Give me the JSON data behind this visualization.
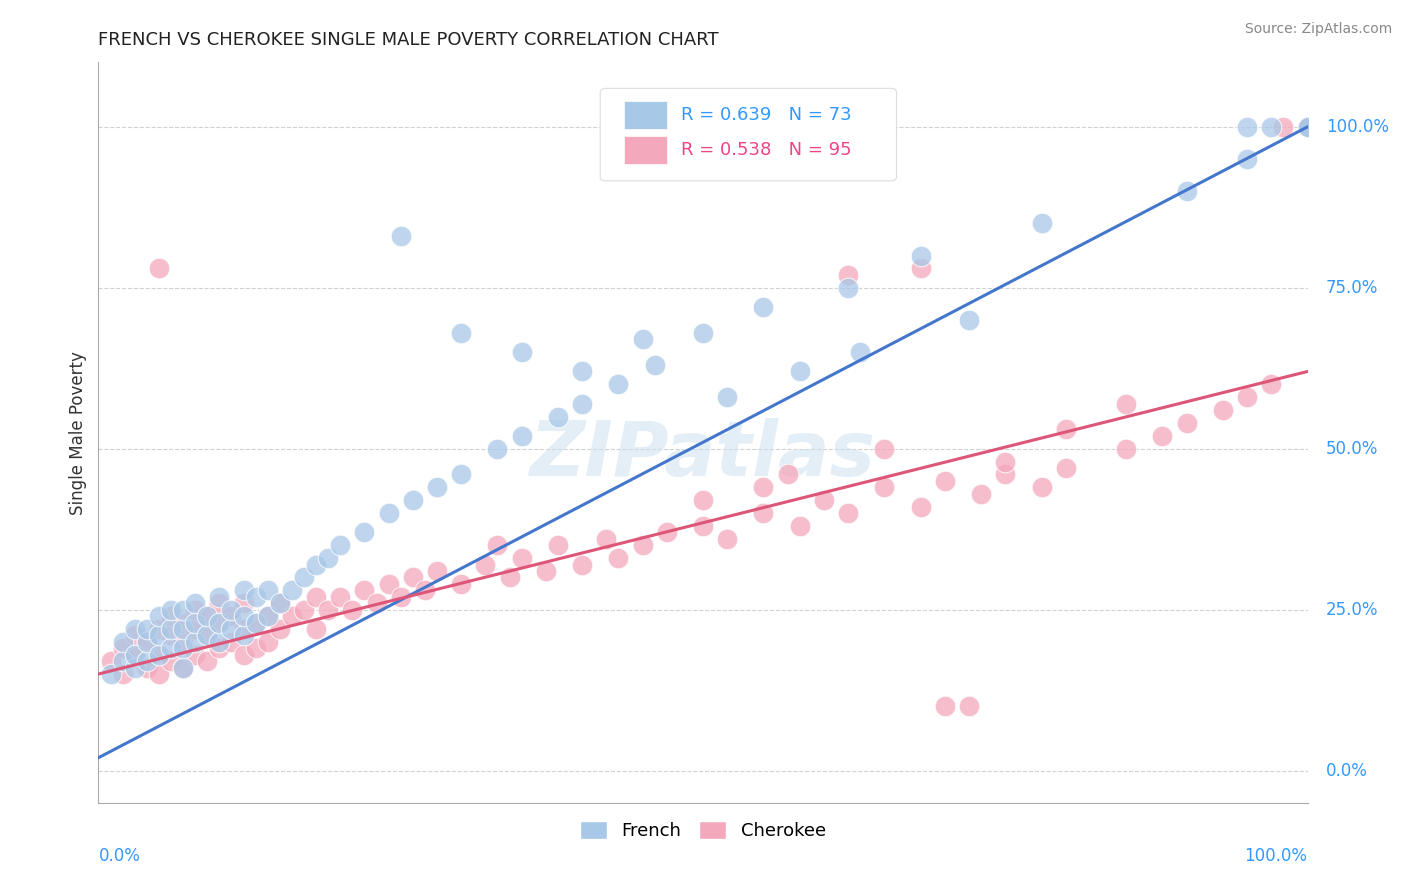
{
  "title": "FRENCH VS CHEROKEE SINGLE MALE POVERTY CORRELATION CHART",
  "source_text": "Source: ZipAtlas.com",
  "ylabel": "Single Male Poverty",
  "xlim": [
    0.0,
    1.0
  ],
  "ylim": [
    -0.05,
    1.1
  ],
  "french_R": 0.639,
  "french_N": 73,
  "cherokee_R": 0.538,
  "cherokee_N": 95,
  "blue_color": "#a8c8e8",
  "pink_color": "#f4a8bc",
  "blue_line_color": "#4477cc",
  "pink_line_color": "#dd5577",
  "legend_blue_text": "#3399ff",
  "legend_pink_text": "#ee4488",
  "ytick_values": [
    0.0,
    0.25,
    0.5,
    0.75,
    1.0
  ],
  "ytick_labels": [
    "0.0%",
    "25.0%",
    "50.0%",
    "75.0%",
    "100.0%"
  ],
  "french_line_x0": 0.0,
  "french_line_y0": 0.02,
  "french_line_x1": 1.0,
  "french_line_y1": 1.0,
  "cherokee_line_x0": 0.0,
  "cherokee_line_y0": 0.15,
  "cherokee_line_x1": 1.0,
  "cherokee_line_y1": 0.62,
  "french_x": [
    0.01,
    0.02,
    0.02,
    0.03,
    0.03,
    0.03,
    0.04,
    0.04,
    0.04,
    0.05,
    0.05,
    0.05,
    0.06,
    0.06,
    0.06,
    0.07,
    0.07,
    0.07,
    0.07,
    0.08,
    0.08,
    0.08,
    0.09,
    0.09,
    0.1,
    0.1,
    0.1,
    0.11,
    0.11,
    0.12,
    0.12,
    0.12,
    0.13,
    0.13,
    0.14,
    0.14,
    0.15,
    0.16,
    0.17,
    0.18,
    0.19,
    0.2,
    0.22,
    0.24,
    0.26,
    0.28,
    0.3,
    0.33,
    0.35,
    0.38,
    0.4,
    0.43,
    0.46,
    0.5,
    0.35,
    0.4,
    0.45,
    0.55,
    0.62,
    0.68,
    0.78,
    0.9,
    0.95,
    0.97,
    1.0,
    0.95,
    1.0,
    0.25,
    0.3,
    0.52,
    0.58,
    0.63,
    0.72
  ],
  "french_y": [
    0.15,
    0.17,
    0.2,
    0.16,
    0.18,
    0.22,
    0.17,
    0.2,
    0.22,
    0.18,
    0.21,
    0.24,
    0.19,
    0.22,
    0.25,
    0.16,
    0.19,
    0.22,
    0.25,
    0.2,
    0.23,
    0.26,
    0.21,
    0.24,
    0.2,
    0.23,
    0.27,
    0.22,
    0.25,
    0.21,
    0.24,
    0.28,
    0.23,
    0.27,
    0.24,
    0.28,
    0.26,
    0.28,
    0.3,
    0.32,
    0.33,
    0.35,
    0.37,
    0.4,
    0.42,
    0.44,
    0.46,
    0.5,
    0.52,
    0.55,
    0.57,
    0.6,
    0.63,
    0.68,
    0.65,
    0.62,
    0.67,
    0.72,
    0.75,
    0.8,
    0.85,
    0.9,
    0.95,
    1.0,
    1.0,
    1.0,
    1.0,
    0.83,
    0.68,
    0.58,
    0.62,
    0.65,
    0.7
  ],
  "cherokee_x": [
    0.01,
    0.02,
    0.02,
    0.03,
    0.03,
    0.04,
    0.04,
    0.05,
    0.05,
    0.05,
    0.06,
    0.06,
    0.06,
    0.07,
    0.07,
    0.07,
    0.08,
    0.08,
    0.08,
    0.09,
    0.09,
    0.09,
    0.1,
    0.1,
    0.1,
    0.11,
    0.11,
    0.12,
    0.12,
    0.12,
    0.13,
    0.13,
    0.14,
    0.14,
    0.15,
    0.15,
    0.16,
    0.17,
    0.18,
    0.18,
    0.19,
    0.2,
    0.21,
    0.22,
    0.23,
    0.24,
    0.25,
    0.26,
    0.27,
    0.28,
    0.3,
    0.32,
    0.34,
    0.35,
    0.37,
    0.38,
    0.4,
    0.42,
    0.43,
    0.45,
    0.47,
    0.5,
    0.52,
    0.55,
    0.58,
    0.6,
    0.62,
    0.65,
    0.68,
    0.7,
    0.73,
    0.75,
    0.78,
    0.8,
    0.85,
    0.88,
    0.9,
    0.93,
    0.95,
    0.97,
    1.0,
    0.05,
    0.62,
    0.68,
    0.7,
    0.72,
    0.75,
    0.8,
    0.85,
    0.33,
    0.5,
    0.55,
    0.57,
    0.65,
    0.98
  ],
  "cherokee_y": [
    0.17,
    0.19,
    0.15,
    0.18,
    0.21,
    0.16,
    0.2,
    0.18,
    0.22,
    0.15,
    0.17,
    0.21,
    0.24,
    0.16,
    0.2,
    0.23,
    0.18,
    0.22,
    0.25,
    0.17,
    0.21,
    0.24,
    0.19,
    0.23,
    0.26,
    0.2,
    0.24,
    0.18,
    0.22,
    0.26,
    0.19,
    0.23,
    0.2,
    0.24,
    0.22,
    0.26,
    0.24,
    0.25,
    0.22,
    0.27,
    0.25,
    0.27,
    0.25,
    0.28,
    0.26,
    0.29,
    0.27,
    0.3,
    0.28,
    0.31,
    0.29,
    0.32,
    0.3,
    0.33,
    0.31,
    0.35,
    0.32,
    0.36,
    0.33,
    0.35,
    0.37,
    0.38,
    0.36,
    0.4,
    0.38,
    0.42,
    0.4,
    0.44,
    0.41,
    0.45,
    0.43,
    0.46,
    0.44,
    0.47,
    0.5,
    0.52,
    0.54,
    0.56,
    0.58,
    0.6,
    1.0,
    0.78,
    0.77,
    0.78,
    0.1,
    0.1,
    0.48,
    0.53,
    0.57,
    0.35,
    0.42,
    0.44,
    0.46,
    0.5,
    1.0
  ]
}
